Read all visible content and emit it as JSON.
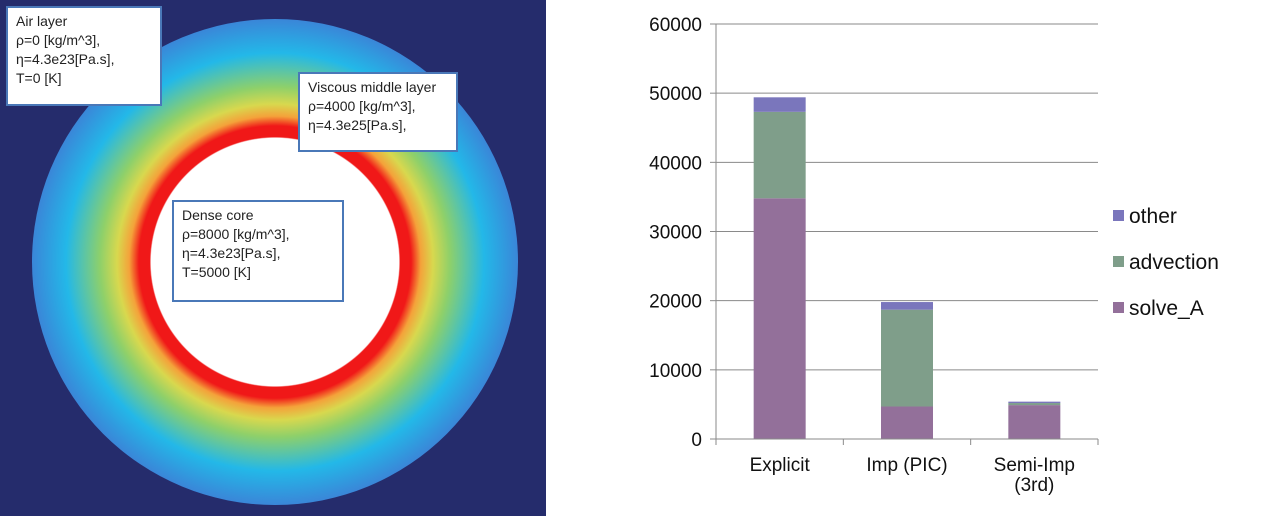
{
  "simulation": {
    "colors": {
      "background": "#252c6c",
      "core": "#ffffff",
      "inner_ring": "#f01818",
      "middle_ring": "#8ed06a",
      "outer_ring": "#23b8e8"
    },
    "labels": {
      "air": {
        "title": "Air layer",
        "lines": [
          "ρ=0 [kg/m^3],",
          "η=4.3e23[Pa.s],",
          "T=0 [K]"
        ]
      },
      "viscous": {
        "title": "Viscous middle layer",
        "lines": [
          "ρ=4000 [kg/m^3],",
          "η=4.3e25[Pa.s],"
        ]
      },
      "core": {
        "title": "Dense core",
        "lines": [
          "ρ=8000 [kg/m^3],",
          "η=4.3e23[Pa.s],",
          "T=5000 [K]"
        ]
      }
    }
  },
  "chart_data": {
    "type": "bar",
    "stacked": true,
    "categories": [
      "Explicit",
      "Imp (PIC)",
      "Semi-Imp\n(3rd)"
    ],
    "series": [
      {
        "name": "solve_A",
        "color": "#93709a",
        "values": [
          34800,
          4700,
          4900
        ]
      },
      {
        "name": "advection",
        "color": "#7f9e8a",
        "values": [
          12500,
          14000,
          300
        ]
      },
      {
        "name": "other",
        "color": "#7a76bc",
        "values": [
          2100,
          1100,
          200
        ]
      }
    ],
    "ylim": [
      0,
      60000
    ],
    "yticks": [
      0,
      10000,
      20000,
      30000,
      40000,
      50000,
      60000
    ],
    "grid": true,
    "legend_position": "right",
    "legend_order": [
      "other",
      "advection",
      "solve_A"
    ],
    "title": "",
    "xlabel": "",
    "ylabel": ""
  }
}
